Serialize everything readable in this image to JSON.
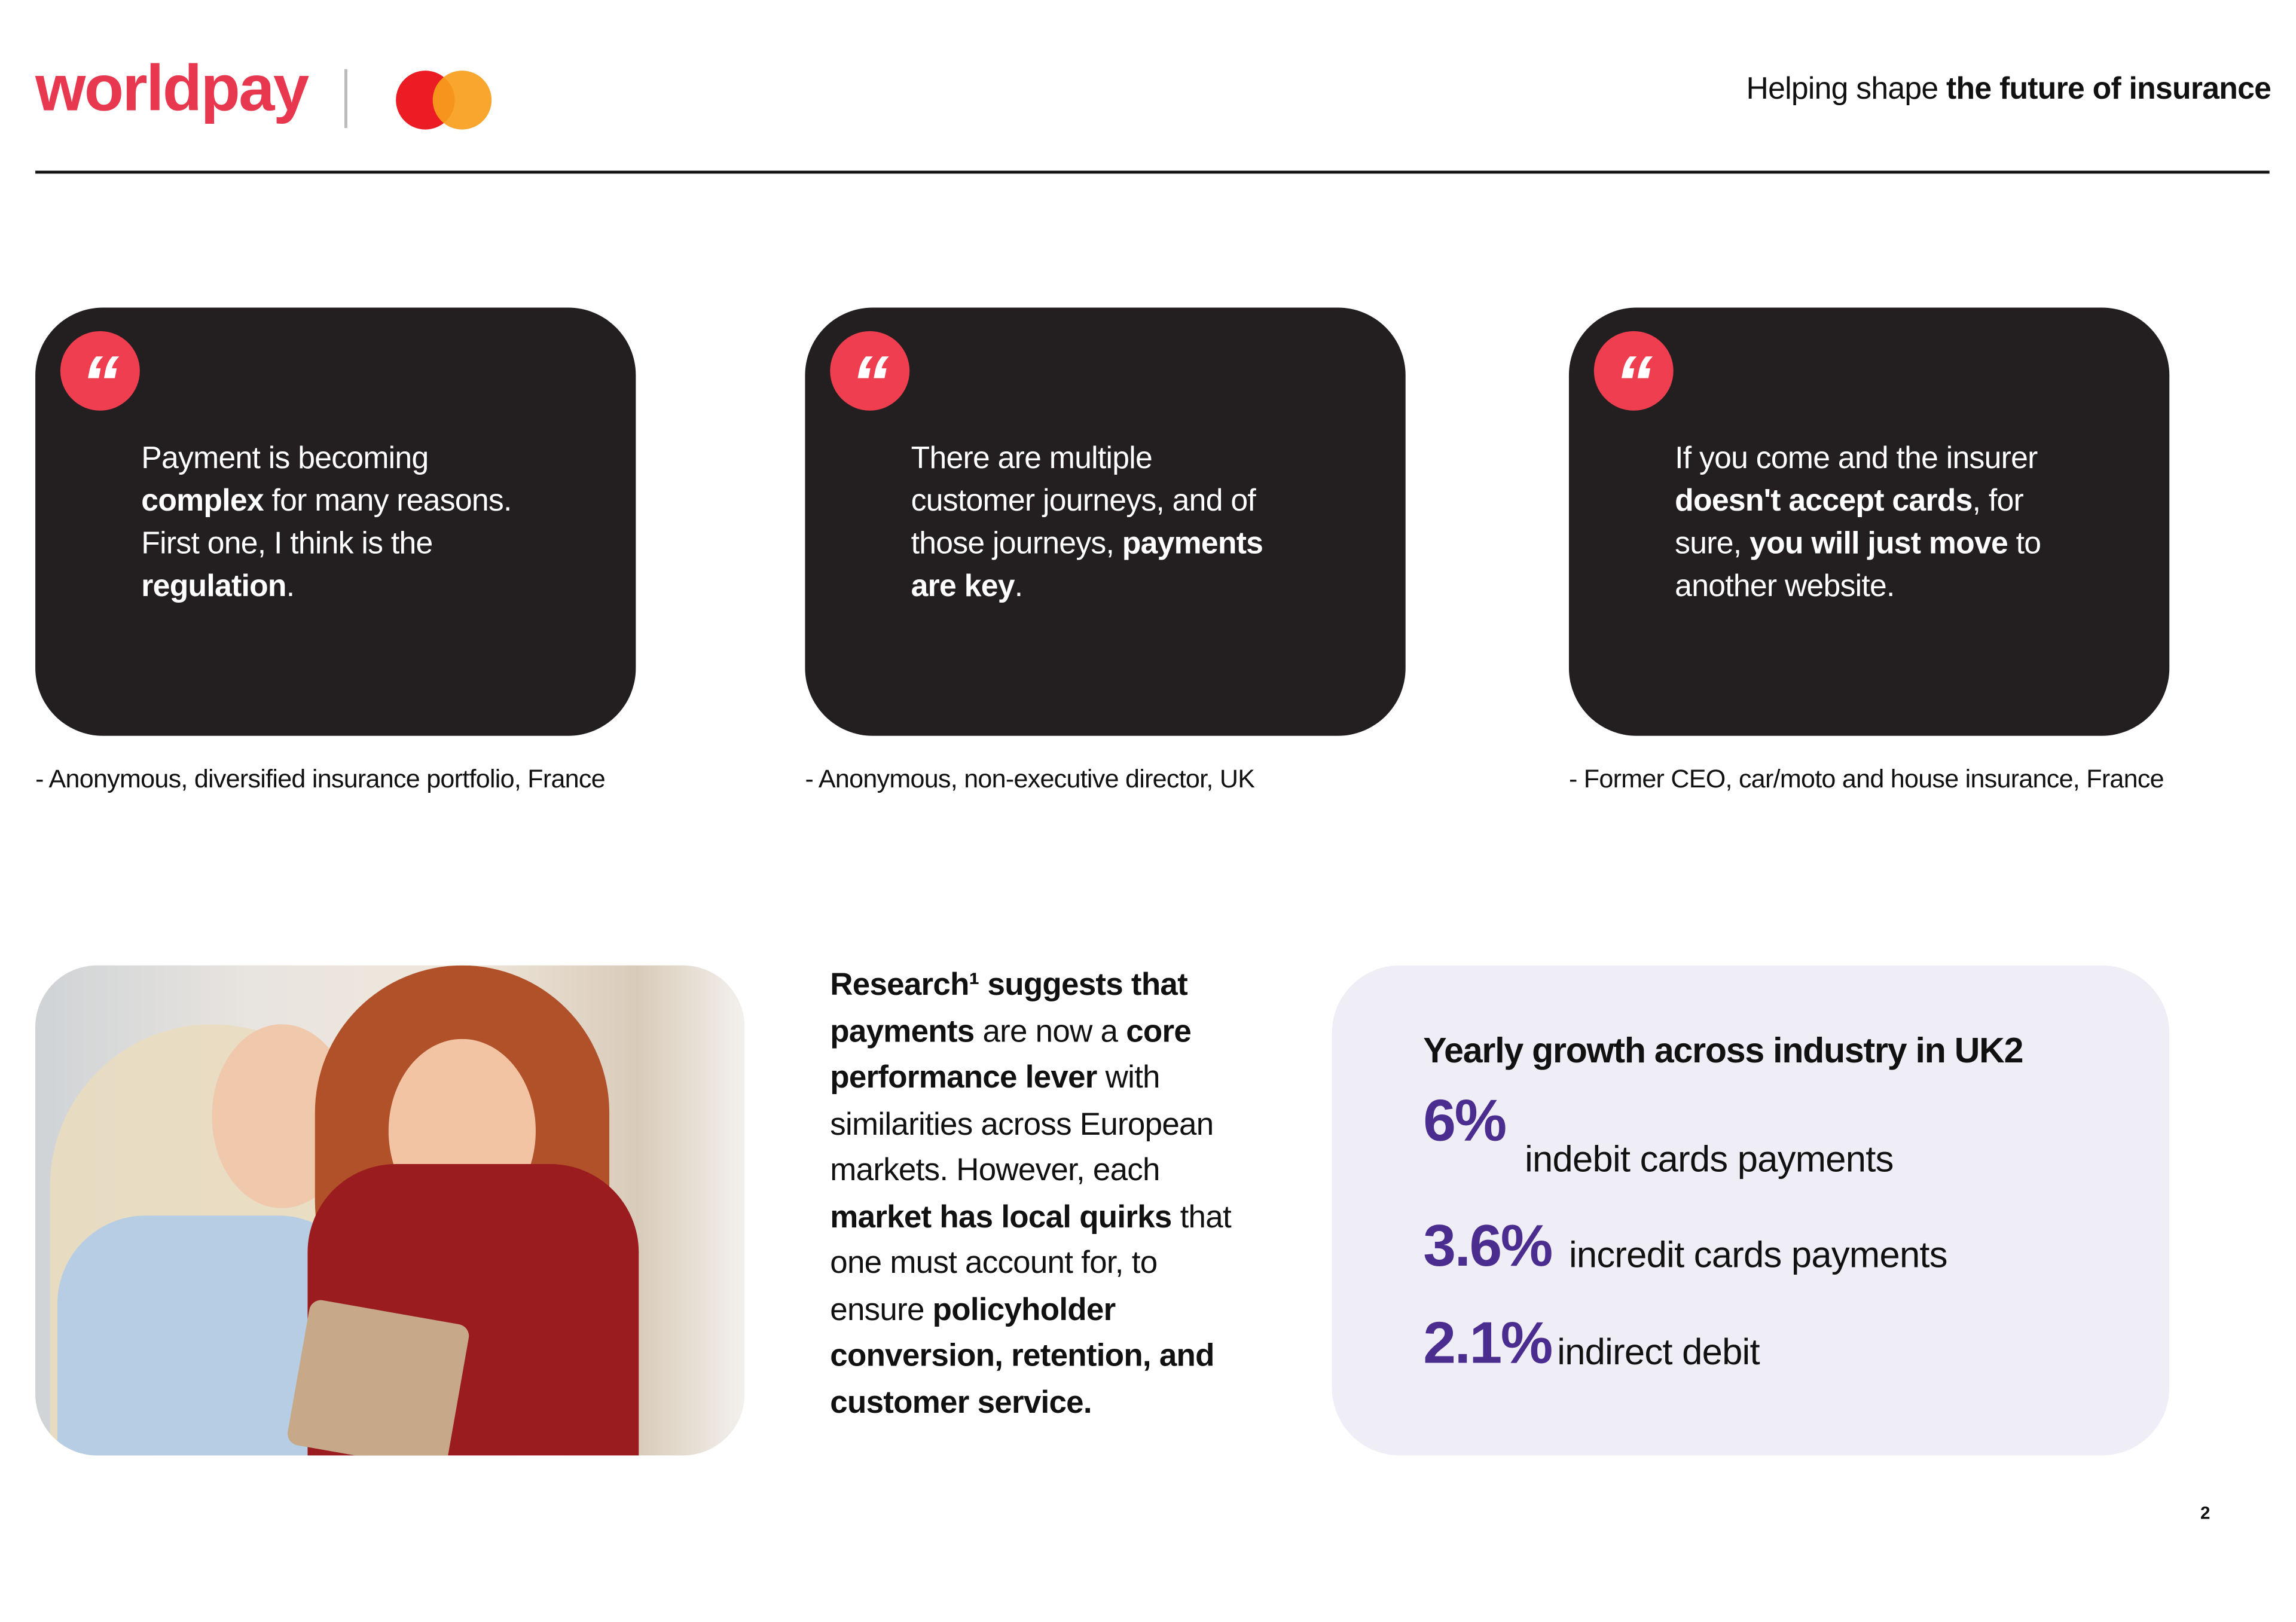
{
  "header": {
    "logo_text": "worldpay",
    "tagline_regular": "Helping shape ",
    "tagline_bold": "the future of insurance",
    "colors": {
      "brand_red": "#e8384f",
      "mc_red": "#eb001b",
      "mc_orange": "#f79e1b"
    }
  },
  "quotes": [
    {
      "icon": "quote-icon",
      "lines": [
        [
          {
            "t": "Payment is becoming",
            "b": false
          }
        ],
        [
          {
            "t": "complex",
            "b": true
          },
          {
            "t": " for many reasons.",
            "b": false
          }
        ],
        [
          {
            "t": "First one, I think is the",
            "b": false
          }
        ],
        [
          {
            "t": "regulation",
            "b": true
          },
          {
            "t": ".",
            "b": false
          }
        ]
      ],
      "attribution": "- Anonymous, diversified insurance portfolio, France"
    },
    {
      "icon": "quote-icon",
      "lines": [
        [
          {
            "t": "There are multiple",
            "b": false
          }
        ],
        [
          {
            "t": "customer journeys, and of",
            "b": false
          }
        ],
        [
          {
            "t": "those journeys, ",
            "b": false
          },
          {
            "t": "payments",
            "b": true
          }
        ],
        [
          {
            "t": "are key",
            "b": true
          },
          {
            "t": ".",
            "b": false
          }
        ]
      ],
      "attribution": "- Anonymous, non-executive director, UK"
    },
    {
      "icon": "quote-icon",
      "lines": [
        [
          {
            "t": "If you come and the insurer",
            "b": false
          }
        ],
        [
          {
            "t": "doesn't accept cards",
            "b": true
          },
          {
            "t": ", for",
            "b": false
          }
        ],
        [
          {
            "t": "sure, ",
            "b": false
          },
          {
            "t": "you will just move",
            "b": true
          },
          {
            "t": " to",
            "b": false
          }
        ],
        [
          {
            "t": "another website.",
            "b": false
          }
        ]
      ],
      "attribution": "- Former CEO, car/moto and house insurance, France"
    }
  ],
  "research": {
    "lines": [
      [
        {
          "t": "Research¹ suggests that",
          "b": true
        }
      ],
      [
        {
          "t": "payments",
          "b": true
        },
        {
          "t": " are now a ",
          "b": false
        },
        {
          "t": "core",
          "b": true
        }
      ],
      [
        {
          "t": "performance lever",
          "b": true
        },
        {
          "t": " with",
          "b": false
        }
      ],
      [
        {
          "t": "similarities across European",
          "b": false
        }
      ],
      [
        {
          "t": "markets. However, each",
          "b": false
        }
      ],
      [
        {
          "t": "market has local quirks",
          "b": true
        },
        {
          "t": " that",
          "b": false
        }
      ],
      [
        {
          "t": "one must account for, to",
          "b": false
        }
      ],
      [
        {
          "t": "ensure ",
          "b": false
        },
        {
          "t": "policyholder",
          "b": true
        }
      ],
      [
        {
          "t": "conversion, retention, and",
          "b": true
        }
      ],
      [
        {
          "t": "customer service.",
          "b": true
        }
      ]
    ]
  },
  "stats": {
    "heading": "Yearly growth across industry in UK2",
    "items": [
      {
        "value": "6%",
        "label": "indebit cards payments"
      },
      {
        "value": "3.6%",
        "label": "incredit cards payments"
      },
      {
        "value": "2.1%",
        "label": "indirect debit"
      }
    ],
    "accent": "#4b2d8f"
  },
  "page_number": "2"
}
